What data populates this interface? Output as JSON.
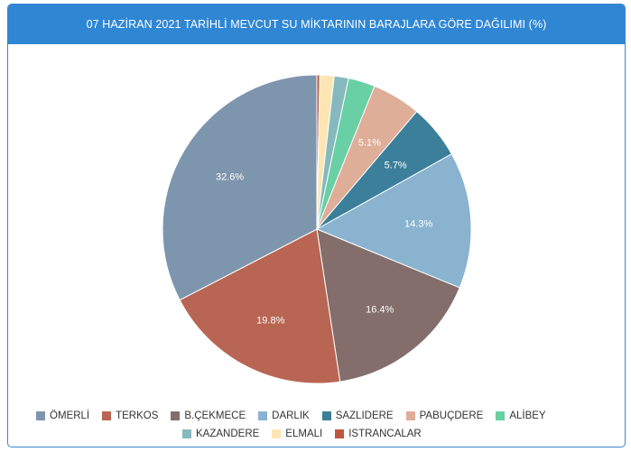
{
  "chart_data": {
    "type": "pie",
    "title": "07 HAZİRAN 2021 TARİHLİ MEVCUT SU MİKTARININ BARAJLARA GÖRE DAĞILIMI (%)",
    "slices": [
      {
        "name": "ÖMERLİ",
        "value": 32.6,
        "label": "32.6%",
        "color": "#7e95ae"
      },
      {
        "name": "TERKOS",
        "value": 19.8,
        "label": "19.8%",
        "color": "#b86653"
      },
      {
        "name": "B.ÇEKMECE",
        "value": 16.4,
        "label": "16.4%",
        "color": "#836e6c"
      },
      {
        "name": "DARLIK",
        "value": 14.3,
        "label": "14.3%",
        "color": "#8ab3d0"
      },
      {
        "name": "SAZLIDERE",
        "value": 5.7,
        "label": "5.7%",
        "color": "#3b7f9a"
      },
      {
        "name": "PABUÇDERE",
        "value": 5.1,
        "label": "5.1%",
        "color": "#deae98"
      },
      {
        "name": "ALİBEY",
        "value": 2.8,
        "label": "",
        "color": "#69cfa5"
      },
      {
        "name": "KAZANDERE",
        "value": 1.5,
        "label": "",
        "color": "#86b9bd"
      },
      {
        "name": "ELMALI",
        "value": 1.5,
        "label": "",
        "color": "#fde6b4"
      },
      {
        "name": "ISTRANCALAR",
        "value": 0.3,
        "label": "",
        "color": "#c0563f"
      }
    ],
    "legend_position": "bottom",
    "start_order": [
      "ISTRANCALAR",
      "ELMALI",
      "KAZANDERE",
      "ALİBEY",
      "PABUÇDERE",
      "SAZLIDERE",
      "DARLIK",
      "B.ÇEKMECE",
      "TERKOS",
      "ÖMERLİ"
    ]
  },
  "legend": {
    "row1": [
      {
        "name": "ÖMERLİ",
        "color": "#7e95ae"
      },
      {
        "name": "TERKOS",
        "color": "#b86653"
      },
      {
        "name": "B.ÇEKMECE",
        "color": "#836e6c"
      },
      {
        "name": "DARLIK",
        "color": "#8ab3d0"
      },
      {
        "name": "SAZLIDERE",
        "color": "#3b7f9a"
      },
      {
        "name": "PABUÇDERE",
        "color": "#deae98"
      },
      {
        "name": "ALİBEY",
        "color": "#69cfa5"
      }
    ],
    "row2": [
      {
        "name": "KAZANDERE",
        "color": "#86b9bd"
      },
      {
        "name": "ELMALI",
        "color": "#fde6b4"
      },
      {
        "name": "ISTRANCALAR",
        "color": "#c0563f"
      }
    ]
  },
  "colors": {
    "header": "#2f86d3",
    "border": "#3a86cc"
  }
}
